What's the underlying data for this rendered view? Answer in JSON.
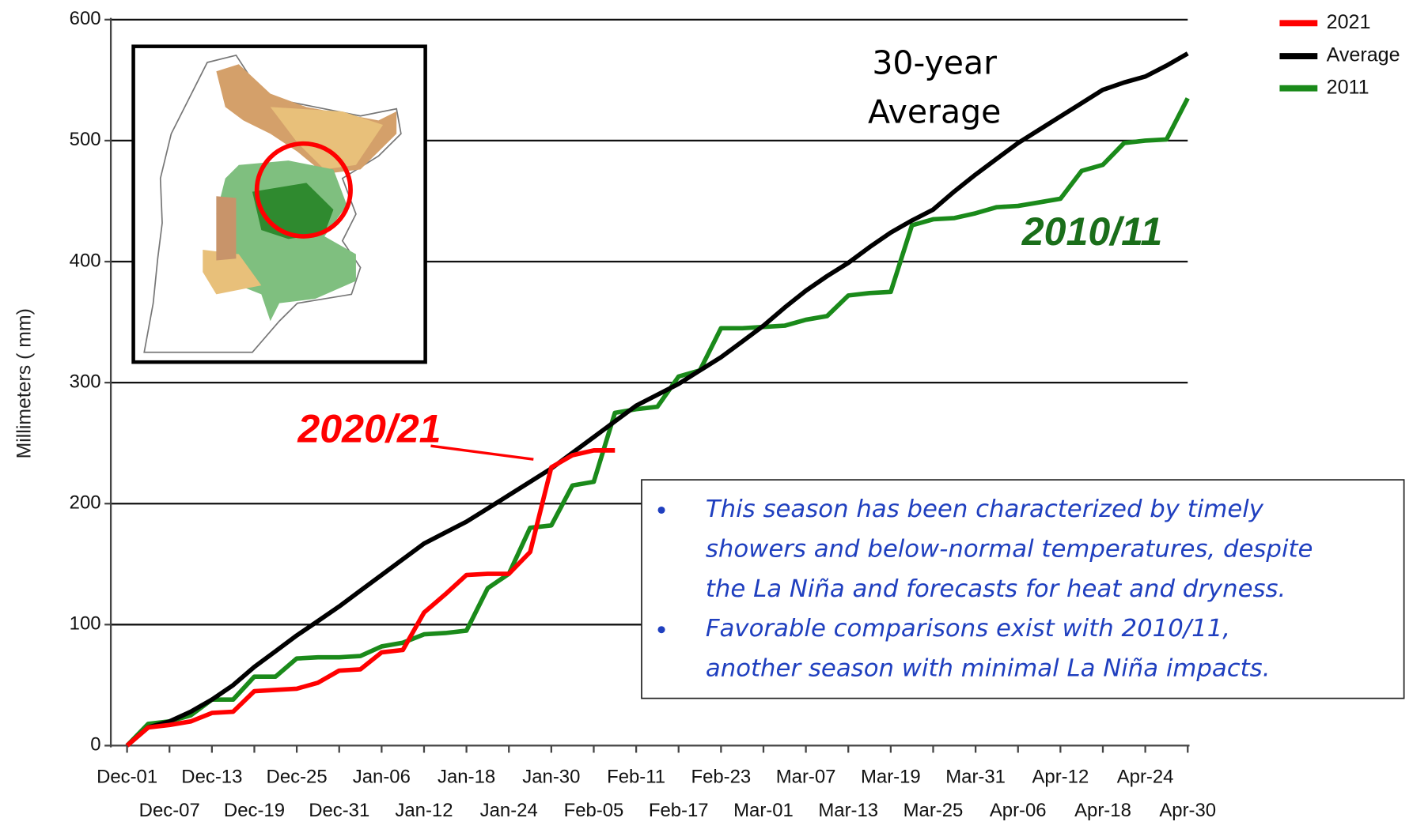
{
  "chart_data": {
    "type": "line",
    "y_label": "Millimeters ( mm)",
    "categories": [
      "Dec-01",
      null,
      "Dec-07",
      null,
      "Dec-13",
      null,
      "Dec-19",
      null,
      "Dec-25",
      null,
      "Dec-31",
      null,
      "Jan-06",
      null,
      "Jan-12",
      null,
      "Jan-18",
      null,
      "Jan-24",
      null,
      "Jan-30",
      null,
      "Feb-05",
      null,
      "Feb-11",
      null,
      "Feb-17",
      null,
      "Feb-23",
      null,
      "Mar-01",
      null,
      "Mar-07",
      null,
      "Mar-13",
      null,
      "Mar-19",
      null,
      "Mar-25",
      null,
      "Mar-31",
      null,
      "Apr-06",
      null,
      "Apr-12",
      null,
      "Apr-18",
      null,
      "Apr-24",
      null,
      "Apr-30"
    ],
    "series": [
      {
        "name": "2021",
        "color": "#ff0000",
        "values": [
          0,
          15,
          17,
          20,
          27,
          28,
          45,
          46,
          47,
          52,
          62,
          63,
          77,
          79,
          110,
          125,
          141,
          142,
          142,
          160,
          230,
          240,
          244,
          244,
          null,
          null,
          null,
          null,
          null,
          null,
          null,
          null,
          null,
          null,
          null,
          null,
          null,
          null,
          null,
          null,
          null,
          null,
          null,
          null,
          null,
          null,
          null,
          null,
          null,
          null,
          null
        ]
      },
      {
        "name": "Average",
        "color": "#000000",
        "values": [
          0,
          15,
          20,
          28,
          38,
          50,
          65,
          78,
          91,
          103,
          115,
          128,
          141,
          154,
          167,
          176,
          185,
          196,
          207,
          218,
          229,
          242,
          255,
          268,
          281,
          290,
          299,
          310,
          321,
          334,
          347,
          362,
          376,
          388,
          399,
          412,
          424,
          434,
          443,
          458,
          472,
          485,
          498,
          509,
          520,
          531,
          542,
          548,
          553,
          562,
          572
        ]
      },
      {
        "name": "2011",
        "color": "#1a8a1a",
        "values": [
          0,
          18,
          20,
          25,
          38,
          38,
          57,
          57,
          72,
          73,
          73,
          74,
          82,
          85,
          92,
          93,
          95,
          130,
          142,
          180,
          182,
          215,
          218,
          275,
          278,
          280,
          305,
          310,
          345,
          345,
          346,
          347,
          352,
          355,
          372,
          374,
          375,
          430,
          435,
          436,
          440,
          445,
          446,
          449,
          452,
          475,
          480,
          498,
          500,
          501,
          535
        ]
      }
    ],
    "ylim": [
      0,
      600
    ],
    "yticks": [
      0,
      100,
      200,
      300,
      400,
      500,
      600
    ],
    "grid": true,
    "legend": "top-right",
    "annotations": {
      "average": [
        "30-year",
        "Average"
      ],
      "season_2011": "2010/11",
      "season_2021": "2020/21"
    },
    "notes": [
      [
        "This season has been characterized by timely",
        "showers and below-normal temperatures, despite",
        "the La Niña and forecasts for heat and dryness."
      ],
      [
        "Favorable comparisons exist with 2010/11,",
        "another season with minimal La Niña impacts."
      ]
    ]
  }
}
